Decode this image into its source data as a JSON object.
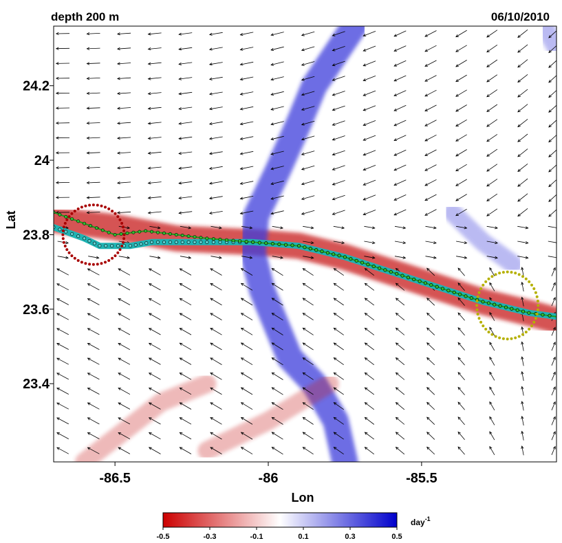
{
  "chart_data": {
    "type": "heatmap",
    "title_left": "depth 200 m",
    "title_right": "06/10/2010",
    "xlabel": "Lon",
    "ylabel": "Lat",
    "xlim": [
      -86.7,
      -85.06
    ],
    "ylim": [
      23.19,
      24.36
    ],
    "xticks": [
      -86.5,
      -86,
      -85.5
    ],
    "xtick_labels": [
      "-86.5",
      "-86",
      "-85.5"
    ],
    "yticks": [
      23.4,
      23.6,
      23.8,
      24,
      24.2
    ],
    "ytick_labels": [
      "23.4",
      "23.6",
      "23.8",
      "24",
      "24.2"
    ],
    "colorbar": {
      "range": [
        -0.5,
        0.5
      ],
      "ticks": [
        -0.5,
        -0.3,
        -0.1,
        0.1,
        0.3,
        0.5
      ],
      "tick_labels": [
        "-0.5",
        "-0.3",
        "-0.1",
        "0.1",
        "0.3",
        "0.5"
      ],
      "unit": "day",
      "unit_sup": "-1",
      "colors": [
        "#cc0000",
        "#ffffff",
        "#0000cc"
      ]
    },
    "bands": [
      {
        "sign": "negative",
        "color": "#c81e1e",
        "width_deg": 0.07,
        "points": [
          [
            -86.7,
            23.84
          ],
          [
            -86.5,
            23.82
          ],
          [
            -86.3,
            23.79
          ],
          [
            -86.05,
            23.78
          ],
          [
            -85.9,
            23.77
          ],
          [
            -85.75,
            23.74
          ],
          [
            -85.6,
            23.7
          ],
          [
            -85.45,
            23.66
          ],
          [
            -85.3,
            23.62
          ],
          [
            -85.15,
            23.59
          ],
          [
            -85.06,
            23.57
          ]
        ]
      },
      {
        "sign": "positive",
        "color": "#3c3cdc",
        "width_deg": 0.07,
        "points": [
          [
            -85.72,
            24.36
          ],
          [
            -85.85,
            24.2
          ],
          [
            -85.9,
            24.1
          ],
          [
            -85.97,
            23.97
          ],
          [
            -86.04,
            23.85
          ],
          [
            -86.05,
            23.75
          ],
          [
            -86.02,
            23.65
          ],
          [
            -85.97,
            23.55
          ],
          [
            -85.93,
            23.47
          ],
          [
            -85.85,
            23.4
          ],
          [
            -85.78,
            23.3
          ],
          [
            -85.75,
            23.19
          ]
        ]
      },
      {
        "sign": "positive",
        "color": "#3c3cdc",
        "width_deg": 0.05,
        "opacity": 0.35,
        "points": [
          [
            -85.4,
            23.86
          ],
          [
            -85.3,
            23.78
          ],
          [
            -85.2,
            23.72
          ]
        ]
      },
      {
        "sign": "positive",
        "color": "#3c3cdc",
        "width_deg": 0.05,
        "opacity": 0.35,
        "points": [
          [
            -85.1,
            24.36
          ],
          [
            -85.06,
            24.3
          ]
        ]
      },
      {
        "sign": "negative",
        "color": "#c81e1e",
        "width_deg": 0.05,
        "opacity": 0.3,
        "points": [
          [
            -86.6,
            23.19
          ],
          [
            -86.35,
            23.35
          ],
          [
            -86.2,
            23.4
          ]
        ]
      },
      {
        "sign": "negative",
        "color": "#c81e1e",
        "width_deg": 0.05,
        "opacity": 0.3,
        "points": [
          [
            -86.2,
            23.22
          ],
          [
            -86.0,
            23.3
          ],
          [
            -85.8,
            23.4
          ]
        ]
      }
    ],
    "float_track_cyan": [
      [
        -86.7,
        23.82
      ],
      [
        -86.6,
        23.79
      ],
      [
        -86.55,
        23.77
      ],
      [
        -86.45,
        23.77
      ],
      [
        -86.38,
        23.78
      ],
      [
        -86.2,
        23.78
      ],
      [
        -86.05,
        23.78
      ],
      [
        -85.9,
        23.77
      ],
      [
        -85.75,
        23.74
      ],
      [
        -85.6,
        23.7
      ],
      [
        -85.45,
        23.66
      ],
      [
        -85.3,
        23.62
      ],
      [
        -85.15,
        23.59
      ],
      [
        -85.06,
        23.58
      ]
    ],
    "float_track_green": [
      [
        -86.7,
        23.86
      ],
      [
        -86.6,
        23.83
      ],
      [
        -86.5,
        23.8
      ],
      [
        -86.4,
        23.81
      ],
      [
        -86.2,
        23.79
      ],
      [
        -86.05,
        23.78
      ],
      [
        -85.9,
        23.77
      ],
      [
        -85.75,
        23.74
      ],
      [
        -85.6,
        23.7
      ],
      [
        -85.45,
        23.66
      ],
      [
        -85.3,
        23.62
      ],
      [
        -85.15,
        23.59
      ],
      [
        -85.06,
        23.58
      ]
    ],
    "circles": [
      {
        "color": "#a80000",
        "center": [
          -86.57,
          23.8
        ],
        "rx_deg": 0.1,
        "ry_deg": 0.08
      },
      {
        "color": "#b5b000",
        "center": [
          -85.22,
          23.61
        ],
        "rx_deg": 0.1,
        "ry_deg": 0.09
      }
    ],
    "vector_grid": {
      "lon_step": 0.1,
      "lat_step": 0.04,
      "description_field": "velocity vectors on regular grid"
    }
  }
}
